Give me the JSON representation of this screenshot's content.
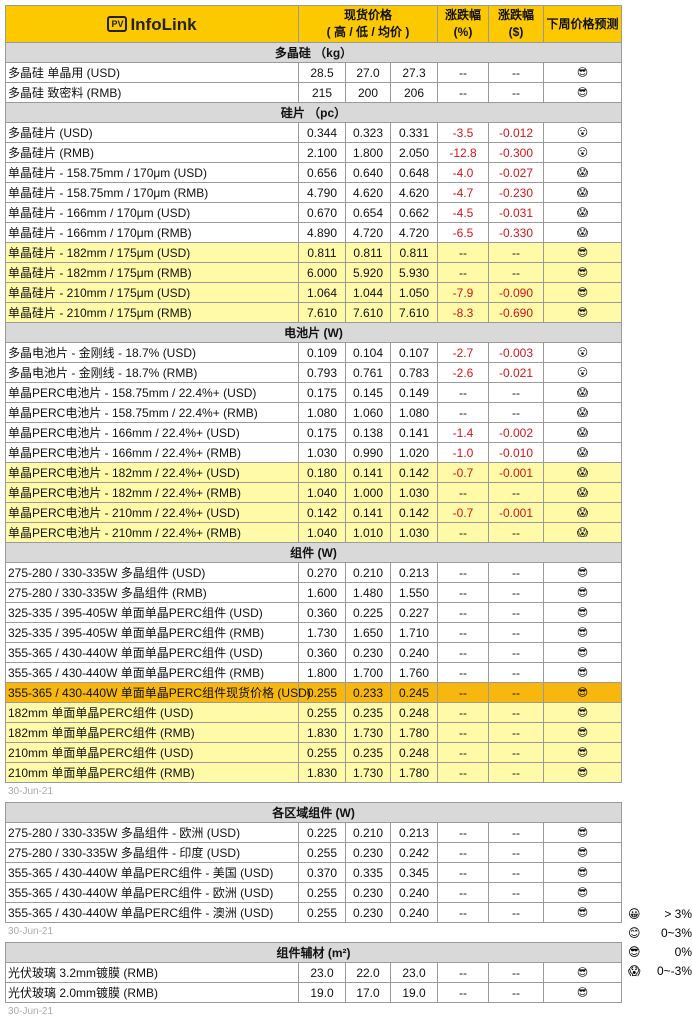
{
  "brand": {
    "logo_badge": "PV",
    "logo_text": "InfoLink"
  },
  "header": {
    "price_line1": "现货价格",
    "price_line2": "( 高 / 低 / 均价 )",
    "pct_line1": "涨跌幅",
    "pct_line2": "(%)",
    "usd_line1": "涨跌幅",
    "usd_line2": "($)",
    "forecast": "下周价格预测"
  },
  "icons": {
    "sunglasses": "😎",
    "astonished": "😮",
    "scream": "😱",
    "grin": "😀",
    "smile": "😊"
  },
  "colors": {
    "header": "#fcc800",
    "section": "#d9d9d9",
    "highlight": "#fffaa8",
    "spot_highlight": "#f8b70f",
    "negative": "#d0161c"
  },
  "main_table": [
    {
      "title": "多晶硅 （kg）",
      "rows": [
        {
          "name": "多晶硅 单晶用 (USD)",
          "high": "28.5",
          "low": "27.0",
          "avg": "27.3",
          "pct": "--",
          "usd": "--",
          "forecast": "sunglasses"
        },
        {
          "name": "多晶硅 致密料 (RMB)",
          "high": "215",
          "low": "200",
          "avg": "206",
          "pct": "--",
          "usd": "--",
          "forecast": "sunglasses"
        }
      ]
    },
    {
      "title": "硅片 （pc）",
      "rows": [
        {
          "name": "多晶硅片 (USD)",
          "high": "0.344",
          "low": "0.323",
          "avg": "0.331",
          "pct": "-3.5",
          "usd": "-0.012",
          "forecast": "astonished"
        },
        {
          "name": "多晶硅片 (RMB)",
          "high": "2.100",
          "low": "1.800",
          "avg": "2.050",
          "pct": "-12.8",
          "usd": "-0.300",
          "forecast": "astonished"
        },
        {
          "name": "单晶硅片 - 158.75mm / 170μm (USD)",
          "high": "0.656",
          "low": "0.640",
          "avg": "0.648",
          "pct": "-4.0",
          "usd": "-0.027",
          "forecast": "scream"
        },
        {
          "name": "单晶硅片 - 158.75mm / 170μm (RMB)",
          "high": "4.790",
          "low": "4.620",
          "avg": "4.620",
          "pct": "-4.7",
          "usd": "-0.230",
          "forecast": "scream"
        },
        {
          "name": "单晶硅片 - 166mm / 170μm (USD)",
          "high": "0.670",
          "low": "0.654",
          "avg": "0.662",
          "pct": "-4.5",
          "usd": "-0.031",
          "forecast": "scream"
        },
        {
          "name": "单晶硅片 - 166mm / 170μm (RMB)",
          "high": "4.890",
          "low": "4.720",
          "avg": "4.720",
          "pct": "-6.5",
          "usd": "-0.330",
          "forecast": "scream"
        },
        {
          "name": "单晶硅片 - 182mm / 175μm (USD)",
          "high": "0.811",
          "low": "0.811",
          "avg": "0.811",
          "pct": "--",
          "usd": "--",
          "forecast": "sunglasses",
          "hl": "y"
        },
        {
          "name": "单晶硅片 - 182mm / 175μm (RMB)",
          "high": "6.000",
          "low": "5.920",
          "avg": "5.930",
          "pct": "--",
          "usd": "--",
          "forecast": "sunglasses",
          "hl": "y"
        },
        {
          "name": "单晶硅片 - 210mm / 175μm (USD)",
          "high": "1.064",
          "low": "1.044",
          "avg": "1.050",
          "pct": "-7.9",
          "usd": "-0.090",
          "forecast": "sunglasses",
          "hl": "y"
        },
        {
          "name": "单晶硅片 - 210mm / 175μm (RMB)",
          "high": "7.610",
          "low": "7.610",
          "avg": "7.610",
          "pct": "-8.3",
          "usd": "-0.690",
          "forecast": "sunglasses",
          "hl": "y"
        }
      ]
    },
    {
      "title": "电池片 (W)",
      "rows": [
        {
          "name": "多晶电池片 - 金刚线 - 18.7% (USD)",
          "high": "0.109",
          "low": "0.104",
          "avg": "0.107",
          "pct": "-2.7",
          "usd": "-0.003",
          "forecast": "astonished"
        },
        {
          "name": "多晶电池片 - 金刚线 - 18.7% (RMB)",
          "high": "0.793",
          "low": "0.761",
          "avg": "0.783",
          "pct": "-2.6",
          "usd": "-0.021",
          "forecast": "astonished"
        },
        {
          "name": "单晶PERC电池片 - 158.75mm / 22.4%+ (USD)",
          "high": "0.175",
          "low": "0.145",
          "avg": "0.149",
          "pct": "--",
          "usd": "--",
          "forecast": "scream"
        },
        {
          "name": "单晶PERC电池片 - 158.75mm / 22.4%+ (RMB)",
          "high": "1.080",
          "low": "1.060",
          "avg": "1.080",
          "pct": "--",
          "usd": "--",
          "forecast": "scream"
        },
        {
          "name": "单晶PERC电池片 - 166mm / 22.4%+ (USD)",
          "high": "0.175",
          "low": "0.138",
          "avg": "0.141",
          "pct": "-1.4",
          "usd": "-0.002",
          "forecast": "scream"
        },
        {
          "name": "单晶PERC电池片 - 166mm / 22.4%+ (RMB)",
          "high": "1.030",
          "low": "0.990",
          "avg": "1.020",
          "pct": "-1.0",
          "usd": "-0.010",
          "forecast": "scream"
        },
        {
          "name": "单晶PERC电池片 - 182mm / 22.4%+ (USD)",
          "high": "0.180",
          "low": "0.141",
          "avg": "0.142",
          "pct": "-0.7",
          "usd": "-0.001",
          "forecast": "scream",
          "hl": "y"
        },
        {
          "name": "单晶PERC电池片 - 182mm / 22.4%+ (RMB)",
          "high": "1.040",
          "low": "1.000",
          "avg": "1.030",
          "pct": "--",
          "usd": "--",
          "forecast": "scream",
          "hl": "y"
        },
        {
          "name": "单晶PERC电池片 - 210mm / 22.4%+ (USD)",
          "high": "0.142",
          "low": "0.141",
          "avg": "0.142",
          "pct": "-0.7",
          "usd": "-0.001",
          "forecast": "scream",
          "hl": "y"
        },
        {
          "name": "单晶PERC电池片 - 210mm / 22.4%+ (RMB)",
          "high": "1.040",
          "low": "1.010",
          "avg": "1.030",
          "pct": "--",
          "usd": "--",
          "forecast": "scream",
          "hl": "y"
        }
      ]
    },
    {
      "title": "组件 (W)",
      "rows": [
        {
          "name": "275-280 / 330-335W 多晶组件 (USD)",
          "high": "0.270",
          "low": "0.210",
          "avg": "0.213",
          "pct": "--",
          "usd": "--",
          "forecast": "sunglasses"
        },
        {
          "name": "275-280 / 330-335W 多晶组件 (RMB)",
          "high": "1.600",
          "low": "1.480",
          "avg": "1.550",
          "pct": "--",
          "usd": "--",
          "forecast": "sunglasses"
        },
        {
          "name": "325-335 / 395-405W 单面单晶PERC组件 (USD)",
          "high": "0.360",
          "low": "0.225",
          "avg": "0.227",
          "pct": "--",
          "usd": "--",
          "forecast": "sunglasses"
        },
        {
          "name": "325-335 / 395-405W 单面单晶PERC组件 (RMB)",
          "high": "1.730",
          "low": "1.650",
          "avg": "1.710",
          "pct": "--",
          "usd": "--",
          "forecast": "sunglasses"
        },
        {
          "name": "355-365 / 430-440W 单面单晶PERC组件 (USD)",
          "high": "0.360",
          "low": "0.230",
          "avg": "0.240",
          "pct": "--",
          "usd": "--",
          "forecast": "sunglasses"
        },
        {
          "name": "355-365 / 430-440W 单面单晶PERC组件 (RMB)",
          "high": "1.800",
          "low": "1.700",
          "avg": "1.760",
          "pct": "--",
          "usd": "--",
          "forecast": "sunglasses"
        },
        {
          "name": "355-365 / 430-440W 单面单晶PERC组件现货价格 (USD)",
          "high": "0.255",
          "low": "0.233",
          "avg": "0.245",
          "pct": "--",
          "usd": "--",
          "forecast": "sunglasses",
          "hl": "o"
        },
        {
          "name": "182mm 单面单晶PERC组件 (USD)",
          "high": "0.255",
          "low": "0.235",
          "avg": "0.248",
          "pct": "--",
          "usd": "--",
          "forecast": "sunglasses",
          "hl": "y"
        },
        {
          "name": "182mm 单面单晶PERC组件 (RMB)",
          "high": "1.830",
          "low": "1.730",
          "avg": "1.780",
          "pct": "--",
          "usd": "--",
          "forecast": "sunglasses",
          "hl": "y"
        },
        {
          "name": "210mm 单面单晶PERC组件 (USD)",
          "high": "0.255",
          "low": "0.235",
          "avg": "0.248",
          "pct": "--",
          "usd": "--",
          "forecast": "sunglasses",
          "hl": "y"
        },
        {
          "name": "210mm 单面单晶PERC组件 (RMB)",
          "high": "1.830",
          "low": "1.730",
          "avg": "1.780",
          "pct": "--",
          "usd": "--",
          "forecast": "sunglasses",
          "hl": "y"
        }
      ]
    }
  ],
  "main_date": "30-Jun-21",
  "regional_table": [
    {
      "title": "各区域组件 (W)",
      "rows": [
        {
          "name": "275-280 / 330-335W  多晶组件 - 欧洲 (USD)",
          "high": "0.225",
          "low": "0.210",
          "avg": "0.213",
          "pct": "--",
          "usd": "--",
          "forecast": "sunglasses"
        },
        {
          "name": "275-280 / 330-335W  多晶组件 - 印度 (USD)",
          "high": "0.255",
          "low": "0.230",
          "avg": "0.242",
          "pct": "--",
          "usd": "--",
          "forecast": "sunglasses"
        },
        {
          "name": "355-365 / 430-440W 单晶PERC组件 - 美国 (USD)",
          "high": "0.370",
          "low": "0.335",
          "avg": "0.345",
          "pct": "--",
          "usd": "--",
          "forecast": "sunglasses"
        },
        {
          "name": "355-365 / 430-440W 单晶PERC组件 - 欧洲 (USD)",
          "high": "0.255",
          "low": "0.230",
          "avg": "0.240",
          "pct": "--",
          "usd": "--",
          "forecast": "sunglasses"
        },
        {
          "name": "355-365 / 430-440W 单晶PERC组件 - 澳洲 (USD)",
          "high": "0.255",
          "low": "0.230",
          "avg": "0.240",
          "pct": "--",
          "usd": "--",
          "forecast": "sunglasses"
        }
      ]
    }
  ],
  "regional_date": "30-Jun-21",
  "aux_table": [
    {
      "title": "组件辅材 (m²)",
      "rows": [
        {
          "name": "光伏玻璃 3.2mm镀膜 (RMB)",
          "high": "23.0",
          "low": "22.0",
          "avg": "23.0",
          "pct": "--",
          "usd": "--",
          "forecast": "sunglasses"
        },
        {
          "name": "光伏玻璃 2.0mm镀膜 (RMB)",
          "high": "19.0",
          "low": "17.0",
          "avg": "19.0",
          "pct": "--",
          "usd": "--",
          "forecast": "sunglasses"
        }
      ]
    }
  ],
  "aux_date": "30-Jun-21",
  "legend": [
    {
      "icon": "grin",
      "label": "> 3%"
    },
    {
      "icon": "smile",
      "label": "0~3%"
    },
    {
      "icon": "sunglasses",
      "label": "0%"
    },
    {
      "icon": "scream",
      "label": "0~-3%"
    }
  ],
  "watermark": "PVInfoLink"
}
